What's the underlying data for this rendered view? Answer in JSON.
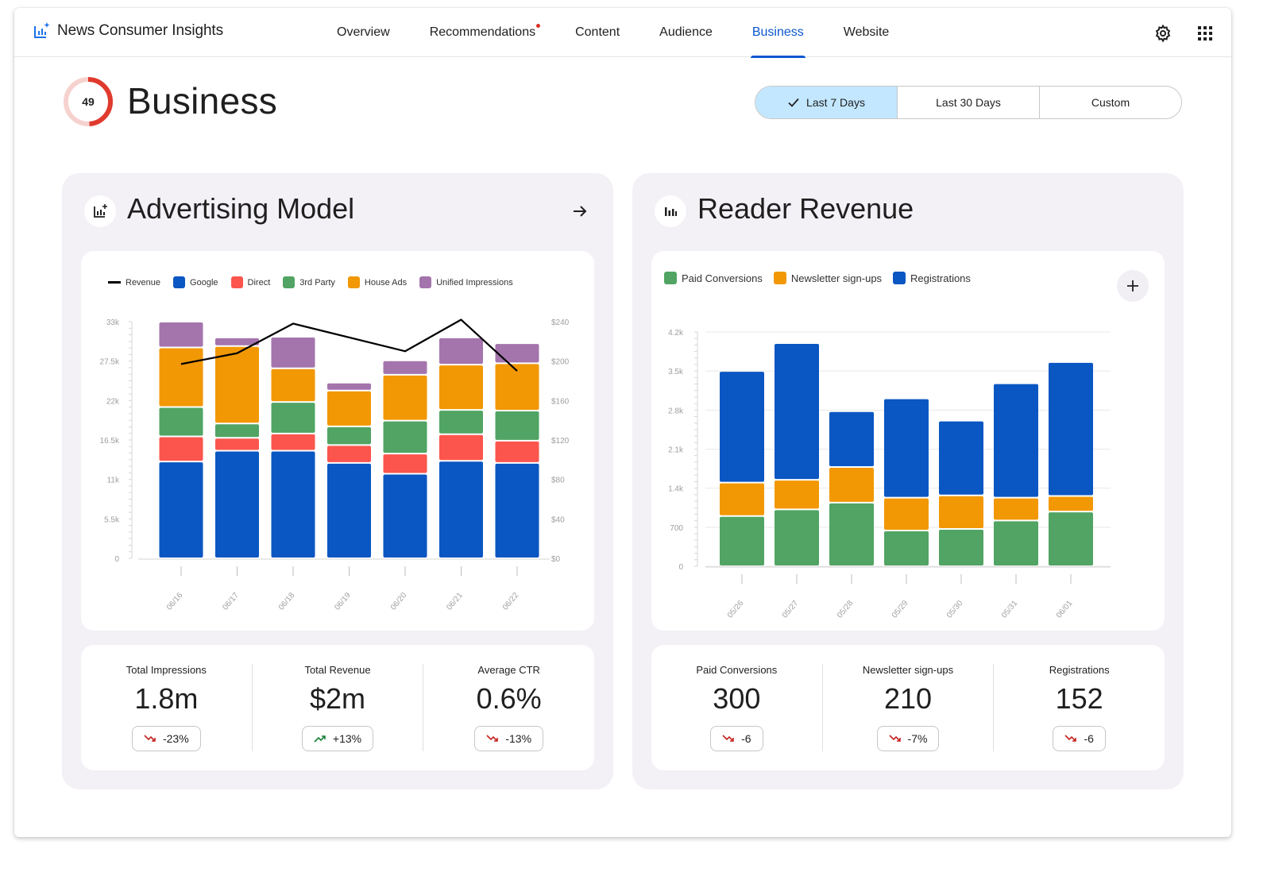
{
  "app": {
    "title": "News Consumer Insights"
  },
  "nav": {
    "tabs": [
      {
        "label": "Overview"
      },
      {
        "label": "Recommendations",
        "has_notification": true
      },
      {
        "label": "Content"
      },
      {
        "label": "Audience"
      },
      {
        "label": "Business",
        "active": true
      },
      {
        "label": "Website"
      }
    ]
  },
  "page": {
    "title": "Business",
    "score": "49"
  },
  "date_range": {
    "options": [
      {
        "label": "Last 7 Days",
        "selected": true
      },
      {
        "label": "Last 30 Days"
      },
      {
        "label": "Custom"
      }
    ]
  },
  "advertising": {
    "title": "Advertising Model",
    "stats": [
      {
        "label": "Total Impressions",
        "value": "1.8m",
        "change": "-23%",
        "trend": "down"
      },
      {
        "label": "Total Revenue",
        "value": "$2m",
        "change": "+13%",
        "trend": "up"
      },
      {
        "label": "Average CTR",
        "value": "0.6%",
        "change": "-13%",
        "trend": "down"
      }
    ]
  },
  "reader": {
    "title": "Reader Revenue",
    "stats": [
      {
        "label": "Paid Conversions",
        "value": "300",
        "change": "-6",
        "trend": "down"
      },
      {
        "label": "Newsletter sign-ups",
        "value": "210",
        "change": "-7%",
        "trend": "down"
      },
      {
        "label": "Registrations",
        "value": "152",
        "change": "-6",
        "trend": "down"
      }
    ]
  },
  "colors": {
    "accent": "#0b57d0",
    "google": "#0a56c2",
    "direct": "#fb554d",
    "third_party": "#51a463",
    "house_ads": "#f29804",
    "unified": "#a474ad",
    "paid_conversions": "#51a463",
    "newsletter": "#f29804",
    "registrations": "#0a56c2",
    "trend_down": "#c5221f",
    "trend_up": "#188038",
    "score_ring": "#e03a2e"
  },
  "chart_data": [
    {
      "type": "bar",
      "stacked": true,
      "categories": [
        "06/16",
        "06/17",
        "06/18",
        "06/19",
        "06/20",
        "06/21",
        "06/22"
      ],
      "series": [
        {
          "name": "Google",
          "color": "#0a56c2",
          "values": [
            13500,
            15000,
            15000,
            13300,
            11800,
            13600,
            13300
          ]
        },
        {
          "name": "Direct",
          "color": "#fb554d",
          "values": [
            3500,
            1800,
            2400,
            2500,
            2800,
            3700,
            3100
          ]
        },
        {
          "name": "3rd Party",
          "color": "#51a463",
          "values": [
            4100,
            2000,
            4400,
            2600,
            4600,
            3400,
            4200
          ]
        },
        {
          "name": "House Ads",
          "color": "#f29804",
          "values": [
            8300,
            10800,
            4700,
            5000,
            6400,
            6300,
            6600
          ]
        },
        {
          "name": "Unified Impressions",
          "color": "#a474ad",
          "values": [
            3600,
            1200,
            4400,
            1100,
            2000,
            3800,
            2800
          ]
        }
      ],
      "line_series": {
        "name": "Revenue",
        "color": "#000000",
        "values": [
          197,
          208,
          238,
          null,
          210,
          242,
          190
        ]
      },
      "ylim": [
        0,
        33000
      ],
      "y_ticks": [
        "0",
        "5.5k",
        "11k",
        "16.5k",
        "22k",
        "27.5k",
        "33k"
      ],
      "y2lim": [
        0,
        240
      ],
      "y2_ticks": [
        "$0",
        "$40",
        "$80",
        "$120",
        "$160",
        "$200",
        "$240"
      ],
      "legend": [
        "Revenue",
        "Google",
        "Direct",
        "3rd Party",
        "House Ads",
        "Unified Impressions"
      ]
    },
    {
      "type": "bar",
      "stacked": true,
      "categories": [
        "05/26",
        "05/27",
        "05/28",
        "05/29",
        "05/30",
        "05/31",
        "06/01"
      ],
      "series": [
        {
          "name": "Paid Conversions",
          "color": "#51a463",
          "values": [
            900,
            1020,
            1140,
            640,
            670,
            820,
            980
          ]
        },
        {
          "name": "Newsletter sign-ups",
          "color": "#f29804",
          "values": [
            600,
            530,
            640,
            590,
            600,
            410,
            280
          ]
        },
        {
          "name": "Registrations",
          "color": "#0a56c2",
          "values": [
            2000,
            2450,
            1000,
            1780,
            1340,
            2050,
            2400
          ]
        }
      ],
      "ylim": [
        0,
        4200
      ],
      "y_ticks": [
        "0",
        "700",
        "1.4k",
        "2.1k",
        "2.8k",
        "3.5k",
        "4.2k"
      ],
      "legend": [
        "Paid Conversions",
        "Newsletter sign-ups",
        "Registrations"
      ]
    }
  ]
}
